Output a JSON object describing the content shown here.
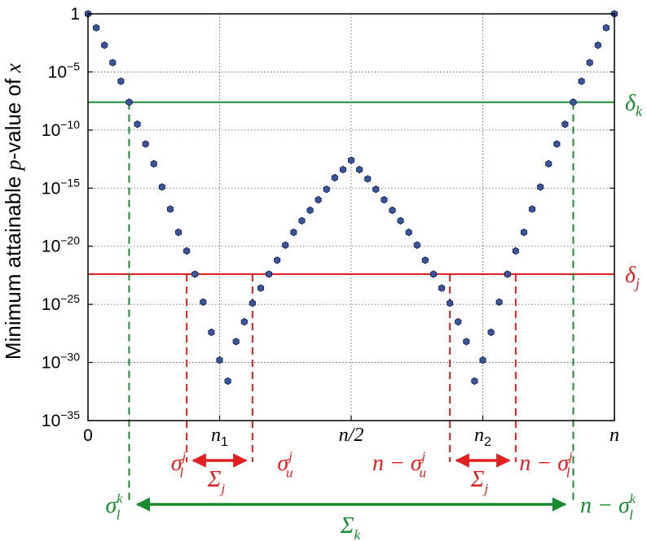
{
  "chart_data": {
    "type": "scatter",
    "ylabel": "Minimum attainable p-value of x",
    "ylabel_parts": {
      "pre": "Minimum attainable ",
      "var": "p",
      "mid": "-value of ",
      "obj": "x"
    },
    "yscale": "log",
    "ylim": [
      1e-35,
      1
    ],
    "xlim": [
      0,
      38
    ],
    "grid": true,
    "y_ticks": [
      {
        "base": "1",
        "exp": "",
        "value": 1
      },
      {
        "base": "10",
        "exp": "−5",
        "value": 1e-05
      },
      {
        "base": "10",
        "exp": "−10",
        "value": 1e-10
      },
      {
        "base": "10",
        "exp": "−15",
        "value": 1e-15
      },
      {
        "base": "10",
        "exp": "−20",
        "value": 1e-20
      },
      {
        "base": "10",
        "exp": "−25",
        "value": 1e-25
      },
      {
        "base": "10",
        "exp": "−30",
        "value": 1e-30
      },
      {
        "base": "10",
        "exp": "−35",
        "value": 1e-35
      }
    ],
    "x_ticks": [
      {
        "x": 0,
        "label": "0",
        "sub": ""
      },
      {
        "x": 8,
        "label": "n",
        "sub": "1"
      },
      {
        "x": 16,
        "label": "n/2",
        "sub": ""
      },
      {
        "x": 24,
        "label": "n",
        "sub": "2"
      },
      {
        "x": 32,
        "label": "n",
        "sub": ""
      }
    ],
    "points_x": [
      0,
      0.5,
      1,
      1.5,
      2,
      2.5,
      3,
      3.5,
      4,
      4.5,
      5,
      5.5,
      6,
      6.5,
      7,
      7.5,
      8,
      8.5,
      9,
      9.5,
      10,
      10.5,
      11,
      11.5,
      12,
      12.5,
      13,
      13.5,
      14,
      14.5,
      15,
      15.5,
      16,
      16.5,
      17,
      17.5,
      18,
      18.5,
      19,
      19.5,
      20,
      20.5,
      21,
      21.5,
      22,
      22.5,
      23,
      23.5,
      24,
      24.5,
      25,
      25.5,
      26,
      26.5,
      27,
      27.5,
      28,
      28.5,
      29,
      29.5,
      30,
      30.5,
      31,
      31.5,
      32
    ],
    "points_exp": [
      0,
      -1.2,
      -2.7,
      -4.2,
      -5.8,
      -7.6,
      -9.5,
      -11.2,
      -12.9,
      -14.9,
      -16.8,
      -18.8,
      -20.4,
      -22.4,
      -24.8,
      -27.4,
      -29.8,
      -31.6,
      -28.2,
      -26.5,
      -24.9,
      -23.6,
      -22.4,
      -21.2,
      -19.9,
      -18.8,
      -17.8,
      -16.9,
      -16.0,
      -15.1,
      -14.1,
      -13.4,
      -12.6,
      -13.4,
      -14.2,
      -15.1,
      -16.0,
      -16.9,
      -17.8,
      -18.8,
      -19.9,
      -21.2,
      -22.4,
      -23.6,
      -24.9,
      -26.5,
      -28.2,
      -31.6,
      -29.8,
      -27.4,
      -24.8,
      -22.4,
      -20.4,
      -18.8,
      -16.8,
      -14.9,
      -12.9,
      -11.2,
      -9.5,
      -7.6,
      -5.8,
      -4.2,
      -2.7,
      -1.2,
      0
    ],
    "thresholds": [
      {
        "name": "delta_k",
        "symbol": "δ",
        "sub": "k",
        "exp": -7.6,
        "color": "#1a8a2e"
      },
      {
        "name": "delta_j",
        "symbol": "δ",
        "sub": "j",
        "exp": -22.4,
        "color": "#e02020"
      }
    ],
    "dashed_lines": [
      {
        "x": 2.5,
        "exp": -7.6,
        "bottom": 620,
        "color": "#1a8a2e"
      },
      {
        "x": 29.5,
        "exp": -7.6,
        "bottom": 620,
        "color": "#1a8a2e"
      },
      {
        "x": 6,
        "exp": -22.4,
        "bottom": 568,
        "color": "#e02020"
      },
      {
        "x": 10,
        "exp": -22.4,
        "bottom": 568,
        "color": "#e02020"
      },
      {
        "x": 22,
        "exp": -22.4,
        "bottom": 568,
        "color": "#e02020"
      },
      {
        "x": 26,
        "exp": -22.4,
        "bottom": 568,
        "color": "#e02020"
      }
    ],
    "annotations": {
      "sigma_l_j": {
        "base": "σ",
        "sub": "l",
        "sup": "j"
      },
      "sigma_u_j": {
        "base": "σ",
        "sub": "u",
        "sup": "j"
      },
      "n_minus_sigma_u_j": {
        "pre": "n − ",
        "base": "σ",
        "sub": "u",
        "sup": "j"
      },
      "n_minus_sigma_l_j": {
        "pre": "n − ",
        "base": "σ",
        "sub": "l",
        "sup": "j"
      },
      "Sigma_j_left": {
        "base": "Σ",
        "sub": "j"
      },
      "Sigma_j_right": {
        "base": "Σ",
        "sub": "j"
      },
      "sigma_l_k": {
        "base": "σ",
        "sub": "l",
        "sup": "k"
      },
      "n_minus_sigma_l_k": {
        "pre": "n − ",
        "base": "σ",
        "sub": "l",
        "sup": "k"
      },
      "Sigma_k": {
        "base": "Σ",
        "sub": "k"
      }
    },
    "colors": {
      "marker_fill": "#3a55a0",
      "marker_stroke": "#101a40",
      "green": "#1a8a2e",
      "red": "#e02020",
      "grid": "#555555"
    }
  }
}
